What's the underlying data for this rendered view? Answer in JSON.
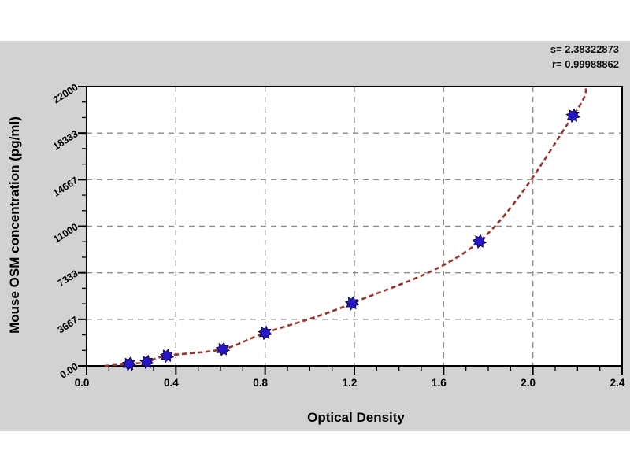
{
  "figure": {
    "panel_color": "#d2d2d2",
    "plot_background": "#ffffff",
    "frame_color": "#000000",
    "grid_color": "#8c8c8c",
    "curve_color": "#96352e",
    "marker_color": "#2817c6",
    "marker_edge_color": "#0d064f"
  },
  "chart_data": {
    "type": "scatter",
    "title": "",
    "xlabel": "Optical Density",
    "ylabel": "Mouse OSM concentration (pg/ml)",
    "xlim": [
      0,
      2.4
    ],
    "ylim": [
      0,
      22000
    ],
    "x_major_ticks": [
      0,
      0.4,
      0.8,
      1.2,
      1.6,
      2.0,
      2.4
    ],
    "x_tick_labels": [
      "0.0",
      "0.4",
      "0.8",
      "1.2",
      "1.6",
      "2.0",
      "2.4"
    ],
    "x_minor_step": 0.1,
    "y_major_ticks": [
      0,
      3666.67,
      7333.33,
      11000,
      14666.67,
      18333.33,
      22000
    ],
    "y_tick_labels": [
      "0.00",
      "3667",
      "7333",
      "11000",
      "14667",
      "18333",
      "22000"
    ],
    "y_minor_divisions": 3,
    "grid": {
      "show": true,
      "style": "dashed",
      "at": "major-ticks"
    },
    "legend": {
      "show": false
    },
    "series": [
      {
        "name": "standard-curve",
        "marker": "star",
        "line_style": "dashed",
        "points": [
          {
            "od": 0.19,
            "conc": 155
          },
          {
            "od": 0.27,
            "conc": 310
          },
          {
            "od": 0.36,
            "conc": 800
          },
          {
            "od": 0.61,
            "conc": 1320
          },
          {
            "od": 0.8,
            "conc": 2600
          },
          {
            "od": 1.19,
            "conc": 4930
          },
          {
            "od": 1.76,
            "conc": 9800
          },
          {
            "od": 2.18,
            "conc": 19700
          }
        ]
      }
    ],
    "curve_extent": {
      "start": {
        "od": 0.08,
        "conc": 0
      },
      "end": {
        "od": 2.24,
        "conc": 22000
      }
    },
    "annotation": {
      "s_label": "s= 2.38322873",
      "r_label": "r= 0.99988862"
    },
    "fit_stats": {
      "s": "2.38322873",
      "r": "0.99988862"
    }
  }
}
